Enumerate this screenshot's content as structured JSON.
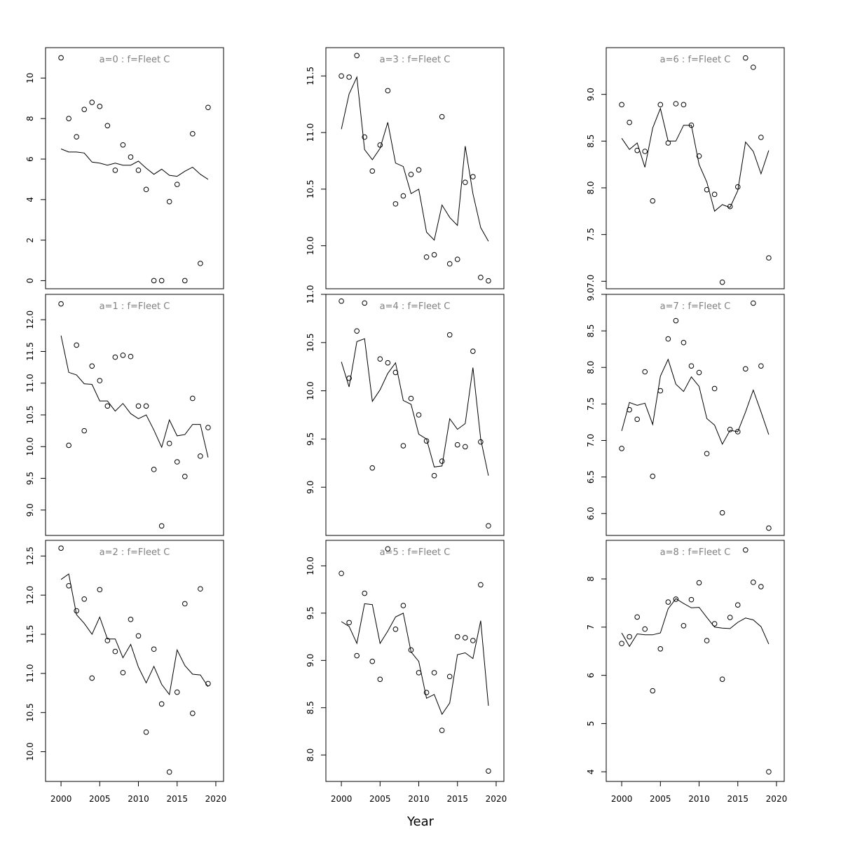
{
  "figure": {
    "xlabel": "Year",
    "background": "#ffffff",
    "title_color": "#808080"
  },
  "chart_data": [
    {
      "type": "scatter",
      "title": "a=0  :  f=Fleet C",
      "x": [
        2000,
        2001,
        2002,
        2003,
        2004,
        2005,
        2006,
        2007,
        2008,
        2009,
        2010,
        2011,
        2012,
        2013,
        2014,
        2015,
        2016,
        2017,
        2018,
        2019
      ],
      "series": [
        {
          "kind": "points",
          "values": [
            11.0,
            8.0,
            7.1,
            8.45,
            8.8,
            8.6,
            7.65,
            5.45,
            6.7,
            6.1,
            5.45,
            4.5,
            0,
            0,
            3.9,
            4.75,
            0,
            7.25,
            0.85,
            8.55
          ]
        },
        {
          "kind": "line",
          "values": [
            6.5,
            6.35,
            6.35,
            6.3,
            5.85,
            5.8,
            5.7,
            5.8,
            5.7,
            5.7,
            5.9,
            5.55,
            5.25,
            5.5,
            5.2,
            5.15,
            5.4,
            5.6,
            5.25,
            5.0
          ]
        }
      ],
      "xlim": [
        1998,
        2021
      ],
      "ylim": [
        -0.4,
        11.5
      ],
      "xticks": [
        2000,
        2005,
        2010,
        2015,
        2020
      ],
      "yticks": [
        0,
        2,
        4,
        6,
        8,
        10
      ],
      "show_xaxis": false
    },
    {
      "type": "scatter",
      "title": "a=1  :  f=Fleet C",
      "x": [
        2000,
        2001,
        2002,
        2003,
        2004,
        2005,
        2006,
        2007,
        2008,
        2009,
        2010,
        2011,
        2012,
        2013,
        2014,
        2015,
        2016,
        2017,
        2018,
        2019
      ],
      "series": [
        {
          "kind": "points",
          "values": [
            12.25,
            10.02,
            11.6,
            10.25,
            11.27,
            11.04,
            10.64,
            11.41,
            11.44,
            11.42,
            10.64,
            10.64,
            9.64,
            8.75,
            10.05,
            9.76,
            9.53,
            10.76,
            9.85,
            10.3
          ]
        },
        {
          "kind": "line",
          "values": [
            11.75,
            11.17,
            11.13,
            10.99,
            10.98,
            10.72,
            10.72,
            10.56,
            10.68,
            10.52,
            10.44,
            10.5,
            10.26,
            9.99,
            10.42,
            10.17,
            10.19,
            10.35,
            10.35,
            9.83
          ]
        }
      ],
      "xlim": [
        1998,
        2021
      ],
      "ylim": [
        8.6,
        12.4
      ],
      "xticks": [
        2000,
        2005,
        2010,
        2015,
        2020
      ],
      "yticks": [
        9.0,
        9.5,
        10.0,
        10.5,
        11.0,
        11.5,
        12.0
      ],
      "show_xaxis": false
    },
    {
      "type": "scatter",
      "title": "a=2  :  f=Fleet C",
      "x": [
        2000,
        2001,
        2002,
        2003,
        2004,
        2005,
        2006,
        2007,
        2008,
        2009,
        2010,
        2011,
        2012,
        2013,
        2014,
        2015,
        2016,
        2017,
        2018,
        2019
      ],
      "series": [
        {
          "kind": "points",
          "values": [
            12.6,
            12.12,
            11.8,
            11.95,
            10.94,
            12.07,
            11.42,
            11.28,
            11.01,
            11.69,
            11.48,
            10.25,
            11.31,
            10.61,
            9.74,
            10.76,
            11.89,
            10.49,
            12.08,
            10.87
          ]
        },
        {
          "kind": "line",
          "values": [
            12.2,
            12.27,
            11.75,
            11.64,
            11.5,
            11.72,
            11.44,
            11.44,
            11.2,
            11.37,
            11.08,
            10.88,
            11.09,
            10.86,
            10.73,
            11.3,
            11.1,
            10.99,
            10.98,
            10.83
          ]
        }
      ],
      "xlim": [
        1998,
        2021
      ],
      "ylim": [
        9.62,
        12.7
      ],
      "xticks": [
        2000,
        2005,
        2010,
        2015,
        2020
      ],
      "yticks": [
        10.0,
        10.5,
        11.0,
        11.5,
        12.0,
        12.5
      ],
      "show_xaxis": true
    },
    {
      "type": "scatter",
      "title": "a=3  :  f=Fleet C",
      "x": [
        2000,
        2001,
        2002,
        2003,
        2004,
        2005,
        2006,
        2007,
        2008,
        2009,
        2010,
        2011,
        2012,
        2013,
        2014,
        2015,
        2016,
        2017,
        2018,
        2019
      ],
      "series": [
        {
          "kind": "points",
          "values": [
            11.5,
            11.49,
            11.68,
            10.96,
            10.66,
            10.89,
            11.37,
            10.37,
            10.44,
            10.63,
            10.67,
            9.9,
            9.92,
            11.14,
            9.84,
            9.88,
            10.56,
            10.61,
            9.72,
            9.69
          ]
        },
        {
          "kind": "line",
          "values": [
            11.03,
            11.34,
            11.49,
            10.85,
            10.76,
            10.86,
            11.09,
            10.73,
            10.7,
            10.46,
            10.5,
            10.12,
            10.05,
            10.36,
            10.25,
            10.18,
            10.88,
            10.46,
            10.16,
            10.04
          ]
        }
      ],
      "xlim": [
        1998,
        2021
      ],
      "ylim": [
        9.62,
        11.75
      ],
      "xticks": [
        2000,
        2005,
        2010,
        2015,
        2020
      ],
      "yticks": [
        10.0,
        10.5,
        11.0,
        11.5
      ],
      "show_xaxis": false
    },
    {
      "type": "scatter",
      "title": "a=4  :  f=Fleet C",
      "x": [
        2000,
        2001,
        2002,
        2003,
        2004,
        2005,
        2006,
        2007,
        2008,
        2009,
        2010,
        2011,
        2012,
        2013,
        2014,
        2015,
        2016,
        2017,
        2018,
        2019
      ],
      "series": [
        {
          "kind": "points",
          "values": [
            10.93,
            10.13,
            10.62,
            10.91,
            9.2,
            10.33,
            10.29,
            10.19,
            9.43,
            9.92,
            9.75,
            9.48,
            9.12,
            9.27,
            10.58,
            9.44,
            9.42,
            10.41,
            9.47,
            8.6
          ]
        },
        {
          "kind": "line",
          "values": [
            10.3,
            10.04,
            10.51,
            10.54,
            9.89,
            10.01,
            10.18,
            10.29,
            9.9,
            9.86,
            9.55,
            9.5,
            9.21,
            9.22,
            9.71,
            9.6,
            9.66,
            10.24,
            9.5,
            9.12
          ]
        }
      ],
      "xlim": [
        1998,
        2021
      ],
      "ylim": [
        8.5,
        11.0
      ],
      "xticks": [
        2000,
        2005,
        2010,
        2015,
        2020
      ],
      "yticks": [
        9.0,
        9.5,
        10.0,
        10.5,
        11.0
      ],
      "show_xaxis": false
    },
    {
      "type": "scatter",
      "title": "a=5  :  f=Fleet C",
      "x": [
        2000,
        2001,
        2002,
        2003,
        2004,
        2005,
        2006,
        2007,
        2008,
        2009,
        2010,
        2011,
        2012,
        2013,
        2014,
        2015,
        2016,
        2017,
        2018,
        2019
      ],
      "series": [
        {
          "kind": "points",
          "values": [
            9.92,
            9.4,
            9.05,
            9.71,
            8.99,
            8.8,
            10.18,
            9.33,
            9.58,
            9.11,
            8.87,
            8.66,
            8.87,
            8.26,
            8.83,
            9.25,
            9.24,
            9.21,
            9.8,
            7.83
          ]
        },
        {
          "kind": "line",
          "values": [
            9.41,
            9.36,
            9.18,
            9.6,
            9.59,
            9.18,
            9.31,
            9.46,
            9.5,
            9.09,
            8.99,
            8.6,
            8.64,
            8.43,
            8.55,
            9.06,
            9.08,
            9.02,
            9.42,
            8.52
          ]
        }
      ],
      "xlim": [
        1998,
        2021
      ],
      "ylim": [
        7.72,
        10.27
      ],
      "xticks": [
        2000,
        2005,
        2010,
        2015,
        2020
      ],
      "yticks": [
        8.0,
        8.5,
        9.0,
        9.5,
        10.0
      ],
      "show_xaxis": true
    },
    {
      "type": "scatter",
      "title": "a=6  :  f=Fleet C",
      "x": [
        2000,
        2001,
        2002,
        2003,
        2004,
        2005,
        2006,
        2007,
        2008,
        2009,
        2010,
        2011,
        2012,
        2013,
        2014,
        2015,
        2016,
        2017,
        2018,
        2019
      ],
      "series": [
        {
          "kind": "points",
          "values": [
            8.89,
            8.7,
            8.4,
            8.39,
            7.86,
            8.89,
            8.48,
            8.9,
            8.89,
            8.67,
            8.34,
            7.98,
            7.93,
            6.99,
            7.8,
            8.01,
            9.39,
            9.29,
            8.54,
            7.25
          ]
        },
        {
          "kind": "line",
          "values": [
            8.53,
            8.41,
            8.48,
            8.22,
            8.64,
            8.85,
            8.5,
            8.5,
            8.67,
            8.67,
            8.25,
            8.06,
            7.75,
            7.82,
            7.79,
            7.97,
            8.49,
            8.39,
            8.15,
            8.4
          ]
        }
      ],
      "xlim": [
        1998,
        2021
      ],
      "ylim": [
        6.92,
        9.5
      ],
      "xticks": [
        2000,
        2005,
        2010,
        2015,
        2020
      ],
      "yticks": [
        7.0,
        7.5,
        8.0,
        8.5,
        9.0
      ],
      "show_xaxis": false
    },
    {
      "type": "scatter",
      "title": "a=7  :  f=Fleet C",
      "x": [
        2000,
        2001,
        2002,
        2003,
        2004,
        2005,
        2006,
        2007,
        2008,
        2009,
        2010,
        2011,
        2012,
        2013,
        2014,
        2015,
        2016,
        2017,
        2018,
        2019
      ],
      "series": [
        {
          "kind": "points",
          "values": [
            6.89,
            7.42,
            7.29,
            7.94,
            6.51,
            7.68,
            8.39,
            8.64,
            8.34,
            8.02,
            7.93,
            6.82,
            7.71,
            6.01,
            7.15,
            7.12,
            7.98,
            8.88,
            8.02,
            5.8
          ]
        },
        {
          "kind": "line",
          "values": [
            7.13,
            7.52,
            7.48,
            7.51,
            7.22,
            7.88,
            8.11,
            7.77,
            7.67,
            7.87,
            7.74,
            7.3,
            7.21,
            6.95,
            7.14,
            7.12,
            7.39,
            7.69,
            7.39,
            7.08
          ]
        }
      ],
      "xlim": [
        1998,
        2021
      ],
      "ylim": [
        5.7,
        9.0
      ],
      "xticks": [
        2000,
        2005,
        2010,
        2015,
        2020
      ],
      "yticks": [
        6.0,
        6.5,
        7.0,
        7.5,
        8.0,
        8.5,
        9.0
      ],
      "show_xaxis": false
    },
    {
      "type": "scatter",
      "title": "a=8  :  f=Fleet C",
      "x": [
        2000,
        2001,
        2002,
        2003,
        2004,
        2005,
        2006,
        2007,
        2008,
        2009,
        2010,
        2011,
        2012,
        2013,
        2014,
        2015,
        2016,
        2017,
        2018,
        2019
      ],
      "series": [
        {
          "kind": "points",
          "values": [
            6.66,
            6.8,
            7.21,
            6.96,
            5.68,
            6.55,
            7.52,
            7.58,
            7.03,
            7.57,
            7.92,
            6.72,
            7.07,
            5.92,
            7.2,
            7.46,
            8.6,
            7.93,
            7.84,
            4.0
          ]
        },
        {
          "kind": "line",
          "values": [
            6.88,
            6.6,
            6.86,
            6.84,
            6.84,
            6.88,
            7.38,
            7.59,
            7.49,
            7.4,
            7.41,
            7.2,
            7.0,
            6.98,
            6.97,
            7.1,
            7.19,
            7.15,
            7.01,
            6.65
          ]
        }
      ],
      "xlim": [
        1998,
        2021
      ],
      "ylim": [
        3.8,
        8.8
      ],
      "xticks": [
        2000,
        2005,
        2010,
        2015,
        2020
      ],
      "yticks": [
        4,
        5,
        6,
        7,
        8
      ],
      "show_xaxis": true
    }
  ]
}
